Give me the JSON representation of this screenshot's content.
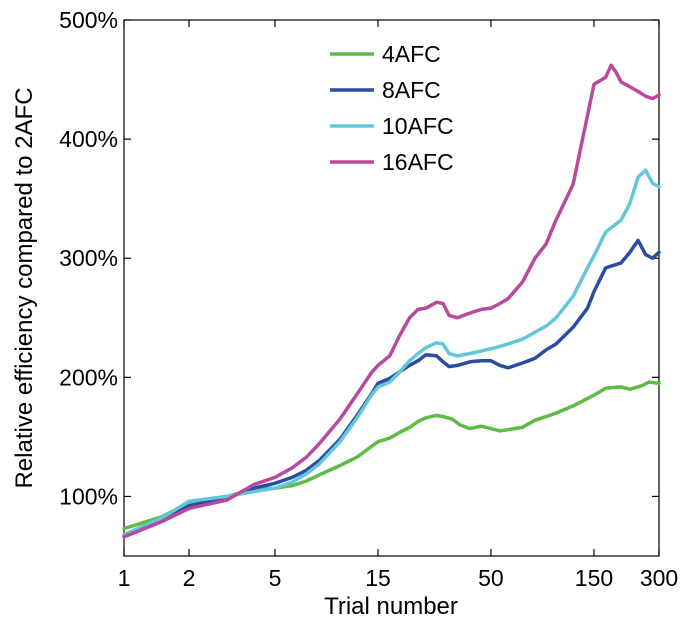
{
  "chart_data": {
    "type": "line",
    "title": "",
    "xlabel": "Trial number",
    "ylabel": "Relative efficiency compared to 2AFC",
    "xscale": "log",
    "xlim": [
      1,
      300
    ],
    "ylim": [
      50,
      500
    ],
    "x_ticks": [
      1,
      2,
      5,
      15,
      50,
      150,
      300
    ],
    "x_tick_labels": [
      "1",
      "2",
      "5",
      "15",
      "50",
      "150",
      "300"
    ],
    "y_ticks": [
      100,
      200,
      300,
      400,
      500
    ],
    "y_tick_labels": [
      "100%",
      "200%",
      "300%",
      "400%",
      "500%"
    ],
    "grid": false,
    "legend_position": "top-center",
    "series": [
      {
        "name": "4AFC",
        "color": "#5dbb46",
        "points": [
          [
            1,
            73
          ],
          [
            1.5,
            83
          ],
          [
            2,
            95
          ],
          [
            3,
            100
          ],
          [
            4,
            106
          ],
          [
            5,
            107
          ],
          [
            6,
            109
          ],
          [
            7,
            113
          ],
          [
            8,
            118
          ],
          [
            10,
            126
          ],
          [
            12,
            133
          ],
          [
            14,
            142
          ],
          [
            15,
            146
          ],
          [
            17,
            149
          ],
          [
            19,
            154
          ],
          [
            21,
            158
          ],
          [
            23,
            163
          ],
          [
            25,
            166
          ],
          [
            28,
            168
          ],
          [
            30,
            167
          ],
          [
            33,
            165
          ],
          [
            36,
            160
          ],
          [
            40,
            157
          ],
          [
            45,
            159
          ],
          [
            50,
            157
          ],
          [
            55,
            155
          ],
          [
            60,
            156
          ],
          [
            70,
            158
          ],
          [
            80,
            164
          ],
          [
            90,
            167
          ],
          [
            100,
            170
          ],
          [
            120,
            176
          ],
          [
            150,
            185
          ],
          [
            170,
            191
          ],
          [
            200,
            192
          ],
          [
            220,
            190
          ],
          [
            250,
            193
          ],
          [
            270,
            196
          ],
          [
            300,
            195
          ]
        ]
      },
      {
        "name": "8AFC",
        "color": "#2a4da0",
        "points": [
          [
            1,
            67
          ],
          [
            1.5,
            80
          ],
          [
            2,
            92
          ],
          [
            3,
            99
          ],
          [
            4,
            107
          ],
          [
            5,
            111
          ],
          [
            6,
            116
          ],
          [
            7,
            122
          ],
          [
            8,
            130
          ],
          [
            10,
            148
          ],
          [
            12,
            168
          ],
          [
            14,
            186
          ],
          [
            15,
            195
          ],
          [
            17,
            199
          ],
          [
            19,
            205
          ],
          [
            21,
            210
          ],
          [
            23,
            214
          ],
          [
            25,
            219
          ],
          [
            28,
            218
          ],
          [
            30,
            213
          ],
          [
            32,
            209
          ],
          [
            35,
            210
          ],
          [
            40,
            213
          ],
          [
            45,
            214
          ],
          [
            50,
            214
          ],
          [
            55,
            210
          ],
          [
            60,
            208
          ],
          [
            70,
            212
          ],
          [
            80,
            216
          ],
          [
            90,
            223
          ],
          [
            100,
            228
          ],
          [
            120,
            242
          ],
          [
            140,
            258
          ],
          [
            150,
            272
          ],
          [
            170,
            292
          ],
          [
            200,
            296
          ],
          [
            220,
            305
          ],
          [
            240,
            315
          ],
          [
            260,
            303
          ],
          [
            280,
            300
          ],
          [
            300,
            305
          ]
        ]
      },
      {
        "name": "10AFC",
        "color": "#62c7d8",
        "points": [
          [
            1,
            68
          ],
          [
            1.5,
            82
          ],
          [
            2,
            96
          ],
          [
            3,
            100
          ],
          [
            4,
            104
          ],
          [
            5,
            107
          ],
          [
            6,
            112
          ],
          [
            7,
            119
          ],
          [
            8,
            127
          ],
          [
            10,
            146
          ],
          [
            12,
            166
          ],
          [
            14,
            185
          ],
          [
            15,
            192
          ],
          [
            17,
            196
          ],
          [
            19,
            205
          ],
          [
            21,
            214
          ],
          [
            23,
            220
          ],
          [
            25,
            225
          ],
          [
            28,
            229
          ],
          [
            30,
            228
          ],
          [
            32,
            220
          ],
          [
            35,
            218
          ],
          [
            40,
            220
          ],
          [
            45,
            222
          ],
          [
            50,
            224
          ],
          [
            55,
            226
          ],
          [
            60,
            228
          ],
          [
            70,
            232
          ],
          [
            80,
            238
          ],
          [
            90,
            243
          ],
          [
            100,
            250
          ],
          [
            120,
            268
          ],
          [
            140,
            292
          ],
          [
            150,
            302
          ],
          [
            170,
            322
          ],
          [
            200,
            332
          ],
          [
            220,
            346
          ],
          [
            240,
            368
          ],
          [
            260,
            374
          ],
          [
            280,
            363
          ],
          [
            300,
            360
          ]
        ]
      },
      {
        "name": "16AFC",
        "color": "#b8499f",
        "points": [
          [
            1,
            66
          ],
          [
            1.5,
            79
          ],
          [
            2,
            90
          ],
          [
            3,
            97
          ],
          [
            4,
            110
          ],
          [
            5,
            116
          ],
          [
            6,
            124
          ],
          [
            7,
            133
          ],
          [
            8,
            144
          ],
          [
            10,
            165
          ],
          [
            12,
            186
          ],
          [
            14,
            204
          ],
          [
            15,
            210
          ],
          [
            17,
            218
          ],
          [
            19,
            236
          ],
          [
            21,
            250
          ],
          [
            23,
            257
          ],
          [
            25,
            258
          ],
          [
            28,
            263
          ],
          [
            30,
            262
          ],
          [
            32,
            252
          ],
          [
            35,
            250
          ],
          [
            40,
            254
          ],
          [
            45,
            257
          ],
          [
            50,
            258
          ],
          [
            55,
            262
          ],
          [
            60,
            266
          ],
          [
            70,
            280
          ],
          [
            80,
            300
          ],
          [
            90,
            312
          ],
          [
            100,
            332
          ],
          [
            120,
            362
          ],
          [
            140,
            420
          ],
          [
            150,
            446
          ],
          [
            170,
            452
          ],
          [
            180,
            462
          ],
          [
            190,
            456
          ],
          [
            200,
            448
          ],
          [
            220,
            444
          ],
          [
            240,
            440
          ],
          [
            260,
            436
          ],
          [
            280,
            434
          ],
          [
            300,
            437
          ]
        ]
      }
    ]
  }
}
